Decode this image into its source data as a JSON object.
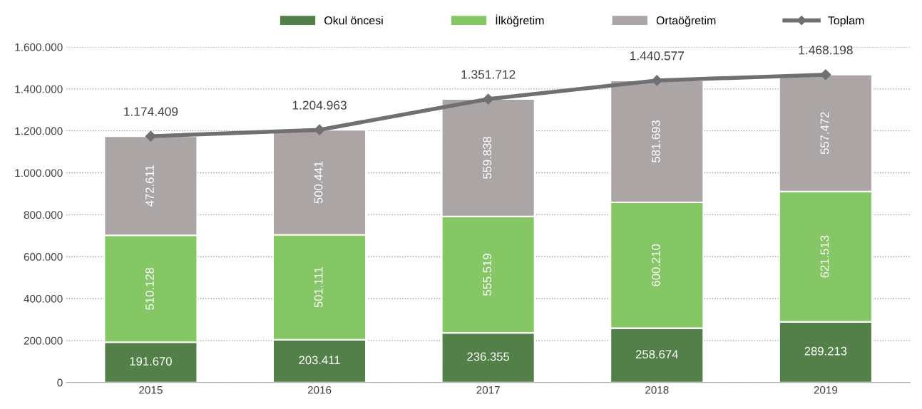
{
  "chart_data": {
    "type": "bar",
    "stacked": true,
    "categories": [
      "2015",
      "2016",
      "2017",
      "2018",
      "2019"
    ],
    "series": [
      {
        "name": "Okul öncesi",
        "color": "#538049",
        "values": [
          191670,
          203411,
          236355,
          258674,
          289213
        ],
        "value_labels": [
          "191.670",
          "203.411",
          "236.355",
          "258.674",
          "289.213"
        ]
      },
      {
        "name": "İlköğretim",
        "color": "#85c765",
        "values": [
          510128,
          501111,
          555519,
          600210,
          621513
        ],
        "value_labels": [
          "510.128",
          "501.111",
          "555.519",
          "600.210",
          "621.513"
        ]
      },
      {
        "name": "Ortaöğretim",
        "color": "#aba6a5",
        "values": [
          472611,
          500441,
          559838,
          581693,
          557472
        ],
        "value_labels": [
          "472.611",
          "500.441",
          "559.838",
          "581.693",
          "557.472"
        ]
      },
      {
        "name": "Toplam",
        "type": "line",
        "color": "#707074",
        "marker": "diamond",
        "values": [
          1174409,
          1204963,
          1351712,
          1440577,
          1468198
        ],
        "value_labels": [
          "1.174.409",
          "1.204.963",
          "1.351.712",
          "1.440.577",
          "1.468.198"
        ]
      }
    ],
    "ylim": [
      0,
      1600000
    ],
    "yticks": [
      {
        "value": 0,
        "label": "0"
      },
      {
        "value": 200000,
        "label": "200.000"
      },
      {
        "value": 400000,
        "label": "400.000"
      },
      {
        "value": 600000,
        "label": "600.000"
      },
      {
        "value": 800000,
        "label": "800.000"
      },
      {
        "value": 1000000,
        "label": "1.000.000"
      },
      {
        "value": 1200000,
        "label": "1.200.000"
      },
      {
        "value": 1400000,
        "label": "1.400.000"
      },
      {
        "value": 1600000,
        "label": "1.600.000"
      }
    ],
    "grid": "y",
    "legend": "top"
  }
}
